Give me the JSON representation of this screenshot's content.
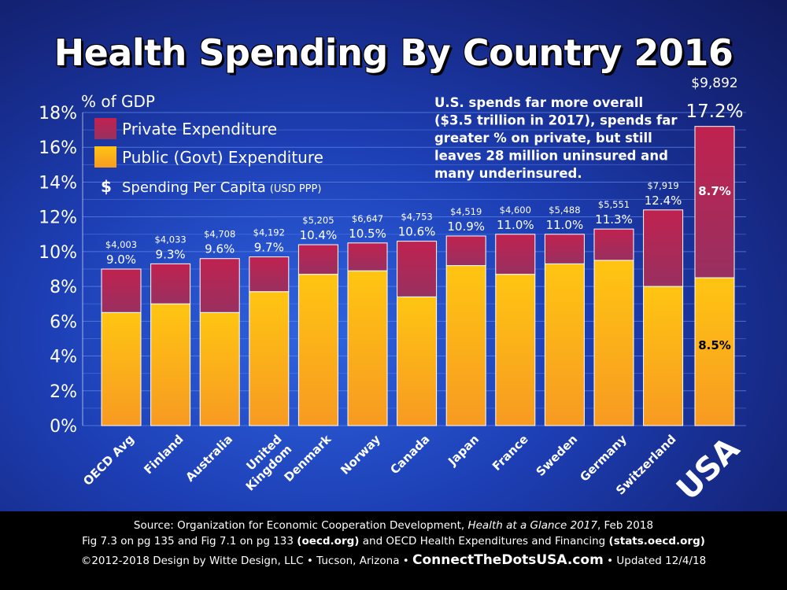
{
  "title": "Health Spending By Country 2016",
  "chart_data": {
    "type": "bar",
    "stacked": true,
    "ylabel": "% of GDP",
    "ylim": [
      0,
      18
    ],
    "yticks": [
      "0%",
      "2%",
      "4%",
      "6%",
      "8%",
      "10%",
      "12%",
      "14%",
      "16%",
      "18%"
    ],
    "grid": true,
    "legend_position": "top-left",
    "categories": [
      "OECD Avg",
      "Finland",
      "Australia",
      "United Kingdom",
      "Denmark",
      "Norway",
      "Canada",
      "Japan",
      "France",
      "Sweden",
      "Germany",
      "Switzerland",
      "USA"
    ],
    "category_lines": [
      [
        "OECD Avg"
      ],
      [
        "Finland"
      ],
      [
        "Australia"
      ],
      [
        "United",
        "Kingdom"
      ],
      [
        "Denmark"
      ],
      [
        "Norway"
      ],
      [
        "Canada"
      ],
      [
        "Japan"
      ],
      [
        "France"
      ],
      [
        "Sweden"
      ],
      [
        "Germany"
      ],
      [
        "Switzerland"
      ],
      [
        "USA"
      ]
    ],
    "series": [
      {
        "name": "Public (Govt) Expenditure",
        "color": "#f7ad16",
        "values": [
          6.5,
          7.0,
          6.5,
          7.7,
          8.7,
          8.9,
          7.4,
          9.2,
          8.7,
          9.3,
          9.5,
          8.0,
          8.5
        ]
      },
      {
        "name": "Private Expenditure",
        "color": "#b4244e",
        "values": [
          2.5,
          2.3,
          3.1,
          2.0,
          1.7,
          1.6,
          3.2,
          1.7,
          2.3,
          1.7,
          1.8,
          4.4,
          8.7
        ]
      }
    ],
    "total_labels": [
      "9.0%",
      "9.3%",
      "9.6%",
      "9.7%",
      "10.4%",
      "10.5%",
      "10.6%",
      "10.9%",
      "11.0%",
      "11.0%",
      "11.3%",
      "12.4%",
      "17.2%"
    ],
    "per_capita_labels": [
      "$4,003",
      "$4,033",
      "$4,708",
      "$4,192",
      "$5,205",
      "$6,647",
      "$4,753",
      "$4,519",
      "$4,600",
      "$5,488",
      "$5,551",
      "$7,919",
      "$9,892"
    ],
    "segment_labels": {
      "USA": {
        "public": "8.5%",
        "private": "8.7%"
      }
    },
    "legend": {
      "private": "Private Expenditure",
      "public": "Public (Govt) Expenditure",
      "per_capita_symbol": "$",
      "per_capita": "Spending Per Capita",
      "per_capita_unit": "(USD PPP)"
    },
    "annotation": [
      "U.S. spends far more overall",
      "($3.5 trillion in 2017), spends far",
      "greater % on private, but still",
      "leaves 28 million uninsured and",
      "many underinsured."
    ]
  },
  "footer": {
    "line1_a": "Source: Organization for Economic Cooperation Development, ",
    "line1_italic": "Health at a Glance 2017",
    "line1_b": ", Feb 2018",
    "line2_a": "Fig 7.3 on pg 135 and Fig 7.1 on pg 133 ",
    "line2_bold1": "(oecd.org)",
    "line2_b": " and OECD Health Expenditures and Financing ",
    "line2_bold2": "(stats.oecd.org)",
    "line3_a": "©2012-2018 Design by Witte Design, LLC • Tucson, Arizona • ",
    "line3_site": "ConnectTheDotsUSA.com",
    "line3_b": " • Updated 12/4/18"
  }
}
